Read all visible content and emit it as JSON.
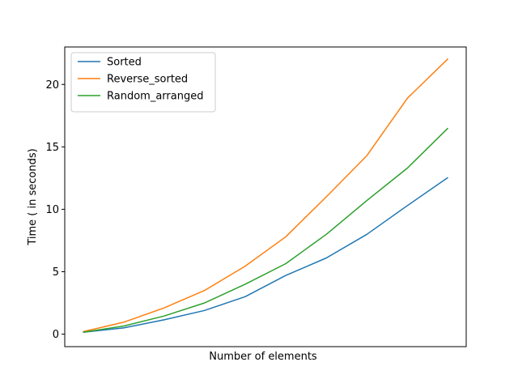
{
  "chart_data": {
    "type": "line",
    "title": "",
    "xlabel": "Number  of elements",
    "ylabel": "Time ( in seconds)",
    "xlim": [
      0,
      9
    ],
    "ylim": [
      -1,
      23
    ],
    "yticks": [
      0,
      5,
      10,
      15,
      20
    ],
    "grid": false,
    "legend": "top-left",
    "x": [
      0,
      1,
      2,
      3,
      4,
      5,
      6,
      7,
      8,
      9
    ],
    "series": [
      {
        "name": "Sorted",
        "color": "#1f77b4",
        "values": [
          0.15,
          0.5,
          1.15,
          1.9,
          3.0,
          4.7,
          6.1,
          8.0,
          10.3,
          12.55
        ]
      },
      {
        "name": "Reverse_sorted",
        "color": "#ff7f0e",
        "values": [
          0.2,
          0.95,
          2.1,
          3.5,
          5.45,
          7.8,
          11.0,
          14.3,
          18.9,
          22.05
        ]
      },
      {
        "name": "Random_arranged",
        "color": "#2ca02c",
        "values": [
          0.15,
          0.65,
          1.45,
          2.5,
          4.0,
          5.65,
          8.0,
          10.7,
          13.3,
          16.5
        ]
      }
    ]
  }
}
